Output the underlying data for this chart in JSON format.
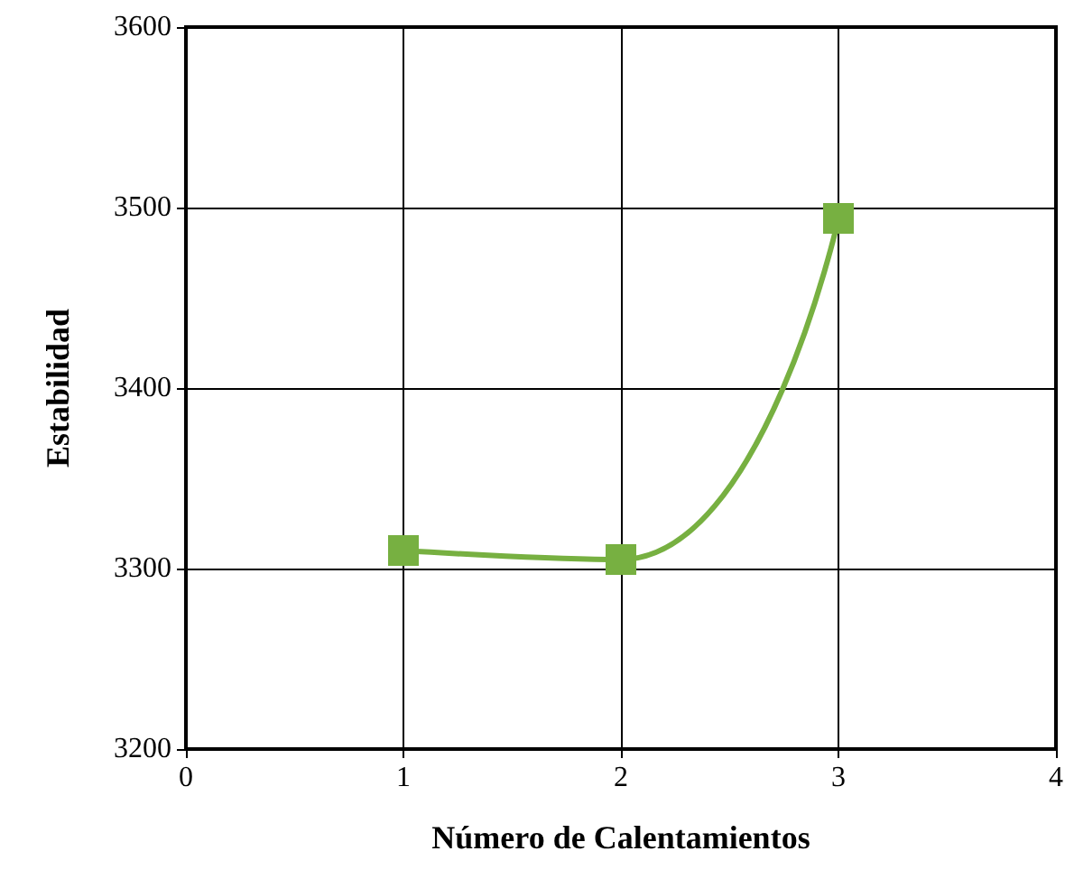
{
  "chart_data": {
    "type": "line",
    "xlabel": "Número de Calentamientos",
    "ylabel": "Estabilidad",
    "x": [
      1,
      2,
      3
    ],
    "series": [
      {
        "color": "#77b041",
        "values": [
          3310,
          3305,
          3494
        ]
      }
    ],
    "xlim": [
      0,
      4
    ],
    "xticks": [
      0,
      1,
      2,
      3,
      4
    ],
    "ylim": [
      3200,
      3600
    ],
    "yticks": [
      3200,
      3300,
      3400,
      3500,
      3600
    ],
    "grid": true,
    "marker": "square",
    "line_style": "solid"
  }
}
